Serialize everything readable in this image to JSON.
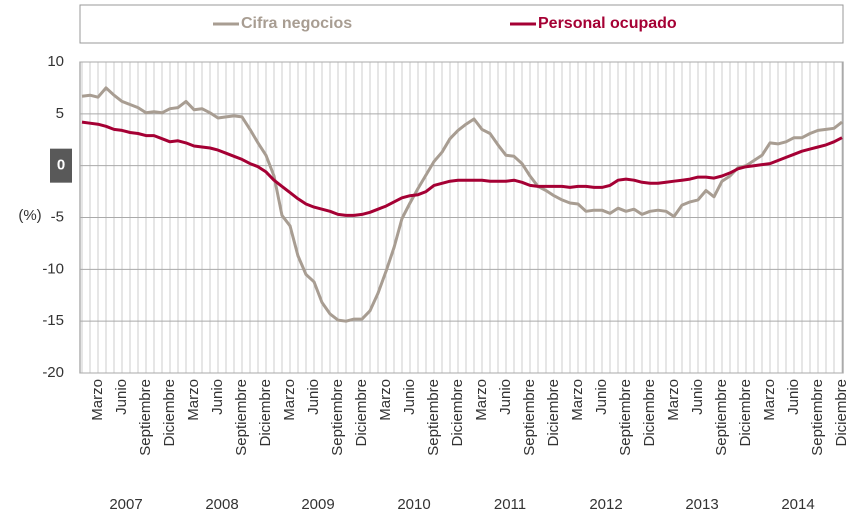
{
  "chart_data": {
    "type": "line",
    "y_label": "(%)",
    "categories": [
      null,
      null,
      "Marzo",
      null,
      null,
      "Junio",
      null,
      null,
      "Septiembre",
      null,
      null,
      "Diciembre",
      null,
      null,
      "Marzo",
      null,
      null,
      "Junio",
      null,
      null,
      "Septiembre",
      null,
      null,
      "Diciembre",
      null,
      null,
      "Marzo",
      null,
      null,
      "Junio",
      null,
      null,
      "Septiembre",
      null,
      null,
      "Diciembre",
      null,
      null,
      "Marzo",
      null,
      null,
      "Junio",
      null,
      null,
      "Septiembre",
      null,
      null,
      "Diciembre",
      null,
      null,
      "Marzo",
      null,
      null,
      "Junio",
      null,
      null,
      "Septiembre",
      null,
      null,
      "Diciembre",
      null,
      null,
      "Marzo",
      null,
      null,
      "Junio",
      null,
      null,
      "Septiembre",
      null,
      null,
      "Diciembre",
      null,
      null,
      "Marzo",
      null,
      null,
      "Junio",
      null,
      null,
      "Septiembre",
      null,
      null,
      "Diciembre",
      null,
      null,
      "Marzo",
      null,
      null,
      "Junio",
      null,
      null,
      "Septiembre",
      null,
      null,
      "Diciembre"
    ],
    "years": [
      "2007",
      "2008",
      "2009",
      "2010",
      "2011",
      "2012",
      "2013",
      "2014"
    ],
    "series": [
      {
        "name": "Cifra negocios",
        "color": "#a89d92",
        "values": [
          6.7,
          6.8,
          6.6,
          7.5,
          6.8,
          6.2,
          5.9,
          5.6,
          5.1,
          5.2,
          5.1,
          5.5,
          5.6,
          6.2,
          5.4,
          5.5,
          5.1,
          4.6,
          4.7,
          4.8,
          4.7,
          3.5,
          2.2,
          1.0,
          -1.0,
          -4.8,
          -5.8,
          -8.7,
          -10.5,
          -11.2,
          -13.2,
          -14.3,
          -14.9,
          -15.0,
          -14.8,
          -14.8,
          -14.0,
          -12.3,
          -10.2,
          -7.9,
          -5.1,
          -3.6,
          -2.2,
          -0.9,
          0.4,
          1.3,
          2.6,
          3.4,
          4.0,
          4.5,
          3.5,
          3.1,
          2.0,
          1.0,
          0.9,
          0.2,
          -1.0,
          -2.0,
          -2.4,
          -2.9,
          -3.3,
          -3.6,
          -3.7,
          -4.4,
          -4.3,
          -4.3,
          -4.6,
          -4.1,
          -4.4,
          -4.2,
          -4.7,
          -4.4,
          -4.3,
          -4.4,
          -4.9,
          -3.8,
          -3.5,
          -3.3,
          -2.4,
          -3.0,
          -1.5,
          -1.0,
          -0.2,
          0.0,
          0.5,
          1.0,
          2.2,
          2.1,
          2.3,
          2.7,
          2.7,
          3.1,
          3.4,
          3.5,
          3.6,
          4.2
        ]
      },
      {
        "name": "Personal ocupado",
        "color": "#a50034",
        "values": [
          4.2,
          4.1,
          4.0,
          3.8,
          3.5,
          3.4,
          3.2,
          3.1,
          2.9,
          2.9,
          2.6,
          2.3,
          2.4,
          2.2,
          1.9,
          1.8,
          1.7,
          1.5,
          1.2,
          0.9,
          0.6,
          0.2,
          -0.1,
          -0.6,
          -1.4,
          -2.0,
          -2.6,
          -3.2,
          -3.7,
          -4.0,
          -4.2,
          -4.4,
          -4.7,
          -4.8,
          -4.8,
          -4.7,
          -4.5,
          -4.2,
          -3.9,
          -3.5,
          -3.1,
          -2.9,
          -2.8,
          -2.5,
          -1.9,
          -1.7,
          -1.5,
          -1.4,
          -1.4,
          -1.4,
          -1.4,
          -1.5,
          -1.5,
          -1.5,
          -1.4,
          -1.6,
          -1.9,
          -2.0,
          -2.0,
          -2.0,
          -2.0,
          -2.1,
          -2.0,
          -2.0,
          -2.1,
          -2.1,
          -1.9,
          -1.4,
          -1.3,
          -1.4,
          -1.6,
          -1.7,
          -1.7,
          -1.6,
          -1.5,
          -1.4,
          -1.3,
          -1.1,
          -1.1,
          -1.2,
          -1.0,
          -0.7,
          -0.3,
          -0.1,
          0.0,
          0.1,
          0.2,
          0.5,
          0.8,
          1.1,
          1.4,
          1.6,
          1.8,
          2.0,
          2.3,
          2.7
        ]
      }
    ],
    "ylim": [
      -20,
      10
    ],
    "yticks": [
      10,
      5,
      0,
      -5,
      -10,
      -15,
      -20
    ],
    "grid": true
  }
}
